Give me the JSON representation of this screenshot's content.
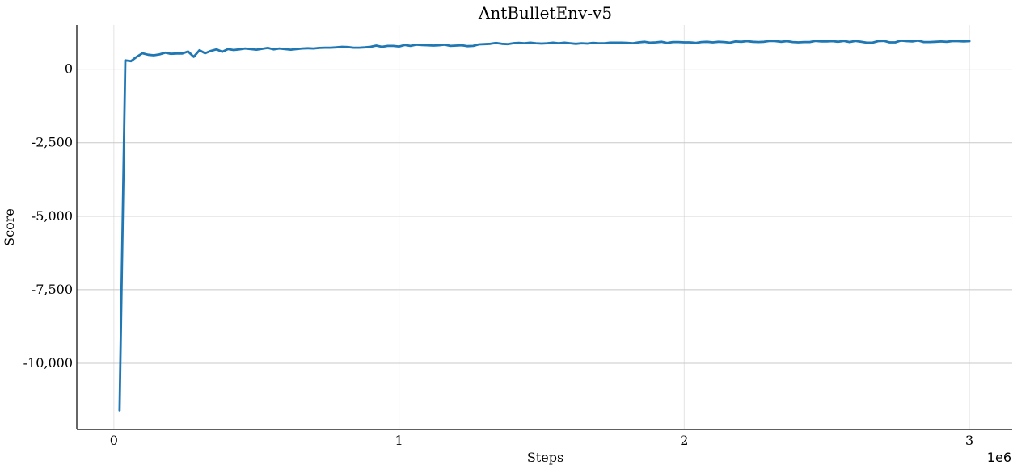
{
  "chart_data": {
    "type": "line",
    "title": "AntBulletEnv-v5",
    "xlabel": "Steps",
    "ylabel": "Score",
    "x_offset_label": "1e6",
    "xlim": [
      -0.13,
      3.15
    ],
    "ylim": [
      -12250,
      1500
    ],
    "x_ticks": [
      0,
      1,
      2,
      3
    ],
    "x_tick_labels": [
      "0",
      "1",
      "2",
      "3"
    ],
    "y_ticks": [
      0,
      -2500,
      -5000,
      -7500,
      -10000
    ],
    "y_tick_labels": [
      "0",
      "-2,500",
      "-5,000",
      "-7,500",
      "-10,000"
    ],
    "grid": true,
    "legend": "none",
    "colors": {
      "line": "#1f77b4",
      "grid": "#c8c8c8",
      "axis": "#000000"
    },
    "series": [
      {
        "x": [
          0.02,
          0.04,
          0.06,
          0.08,
          0.1,
          0.12,
          0.14,
          0.16,
          0.18,
          0.2,
          0.22,
          0.24,
          0.26,
          0.28,
          0.3,
          0.32,
          0.34,
          0.36,
          0.38,
          0.4,
          0.42,
          0.44,
          0.46,
          0.48,
          0.5,
          0.52,
          0.54,
          0.56,
          0.58,
          0.6,
          0.62,
          0.64,
          0.66,
          0.68,
          0.7,
          0.72,
          0.74,
          0.76,
          0.78,
          0.8,
          0.82,
          0.84,
          0.86,
          0.88,
          0.9,
          0.92,
          0.94,
          0.96,
          0.98,
          1.0,
          1.02,
          1.04,
          1.06,
          1.08,
          1.1,
          1.12,
          1.14,
          1.16,
          1.18,
          1.2,
          1.22,
          1.24,
          1.26,
          1.28,
          1.3,
          1.32,
          1.34,
          1.36,
          1.38,
          1.4,
          1.42,
          1.44,
          1.46,
          1.48,
          1.5,
          1.52,
          1.54,
          1.56,
          1.58,
          1.6,
          1.62,
          1.64,
          1.66,
          1.68,
          1.7,
          1.72,
          1.74,
          1.76,
          1.78,
          1.8,
          1.82,
          1.84,
          1.86,
          1.88,
          1.9,
          1.92,
          1.94,
          1.96,
          1.98,
          2.0,
          2.02,
          2.04,
          2.06,
          2.08,
          2.1,
          2.12,
          2.14,
          2.16,
          2.18,
          2.2,
          2.22,
          2.24,
          2.26,
          2.28,
          2.3,
          2.32,
          2.34,
          2.36,
          2.38,
          2.4,
          2.42,
          2.44,
          2.46,
          2.48,
          2.5,
          2.52,
          2.54,
          2.56,
          2.58,
          2.6,
          2.62,
          2.64,
          2.66,
          2.68,
          2.7,
          2.72,
          2.74,
          2.76,
          2.78,
          2.8,
          2.82,
          2.84,
          2.86,
          2.88,
          2.9,
          2.92,
          2.94,
          2.96,
          2.98,
          3.0
        ],
        "values": [
          -11600,
          300,
          270,
          420,
          540,
          490,
          470,
          500,
          560,
          520,
          530,
          530,
          600,
          420,
          640,
          540,
          620,
          670,
          590,
          680,
          650,
          670,
          700,
          680,
          660,
          690,
          720,
          670,
          700,
          680,
          660,
          680,
          700,
          710,
          700,
          720,
          730,
          730,
          740,
          760,
          750,
          730,
          730,
          740,
          760,
          800,
          760,
          790,
          790,
          770,
          820,
          790,
          830,
          820,
          810,
          800,
          810,
          830,
          790,
          800,
          810,
          780,
          790,
          840,
          850,
          860,
          890,
          860,
          850,
          880,
          890,
          880,
          900,
          880,
          870,
          880,
          900,
          880,
          900,
          880,
          860,
          880,
          870,
          890,
          880,
          880,
          900,
          900,
          900,
          890,
          880,
          910,
          930,
          900,
          910,
          930,
          890,
          920,
          920,
          910,
          910,
          890,
          920,
          930,
          910,
          930,
          920,
          900,
          940,
          930,
          950,
          930,
          920,
          930,
          960,
          950,
          930,
          950,
          920,
          910,
          920,
          920,
          960,
          940,
          940,
          950,
          930,
          960,
          920,
          960,
          930,
          900,
          900,
          950,
          960,
          910,
          910,
          970,
          950,
          940,
          970,
          920,
          920,
          930,
          940,
          930,
          950,
          950,
          940,
          950
        ]
      }
    ]
  }
}
